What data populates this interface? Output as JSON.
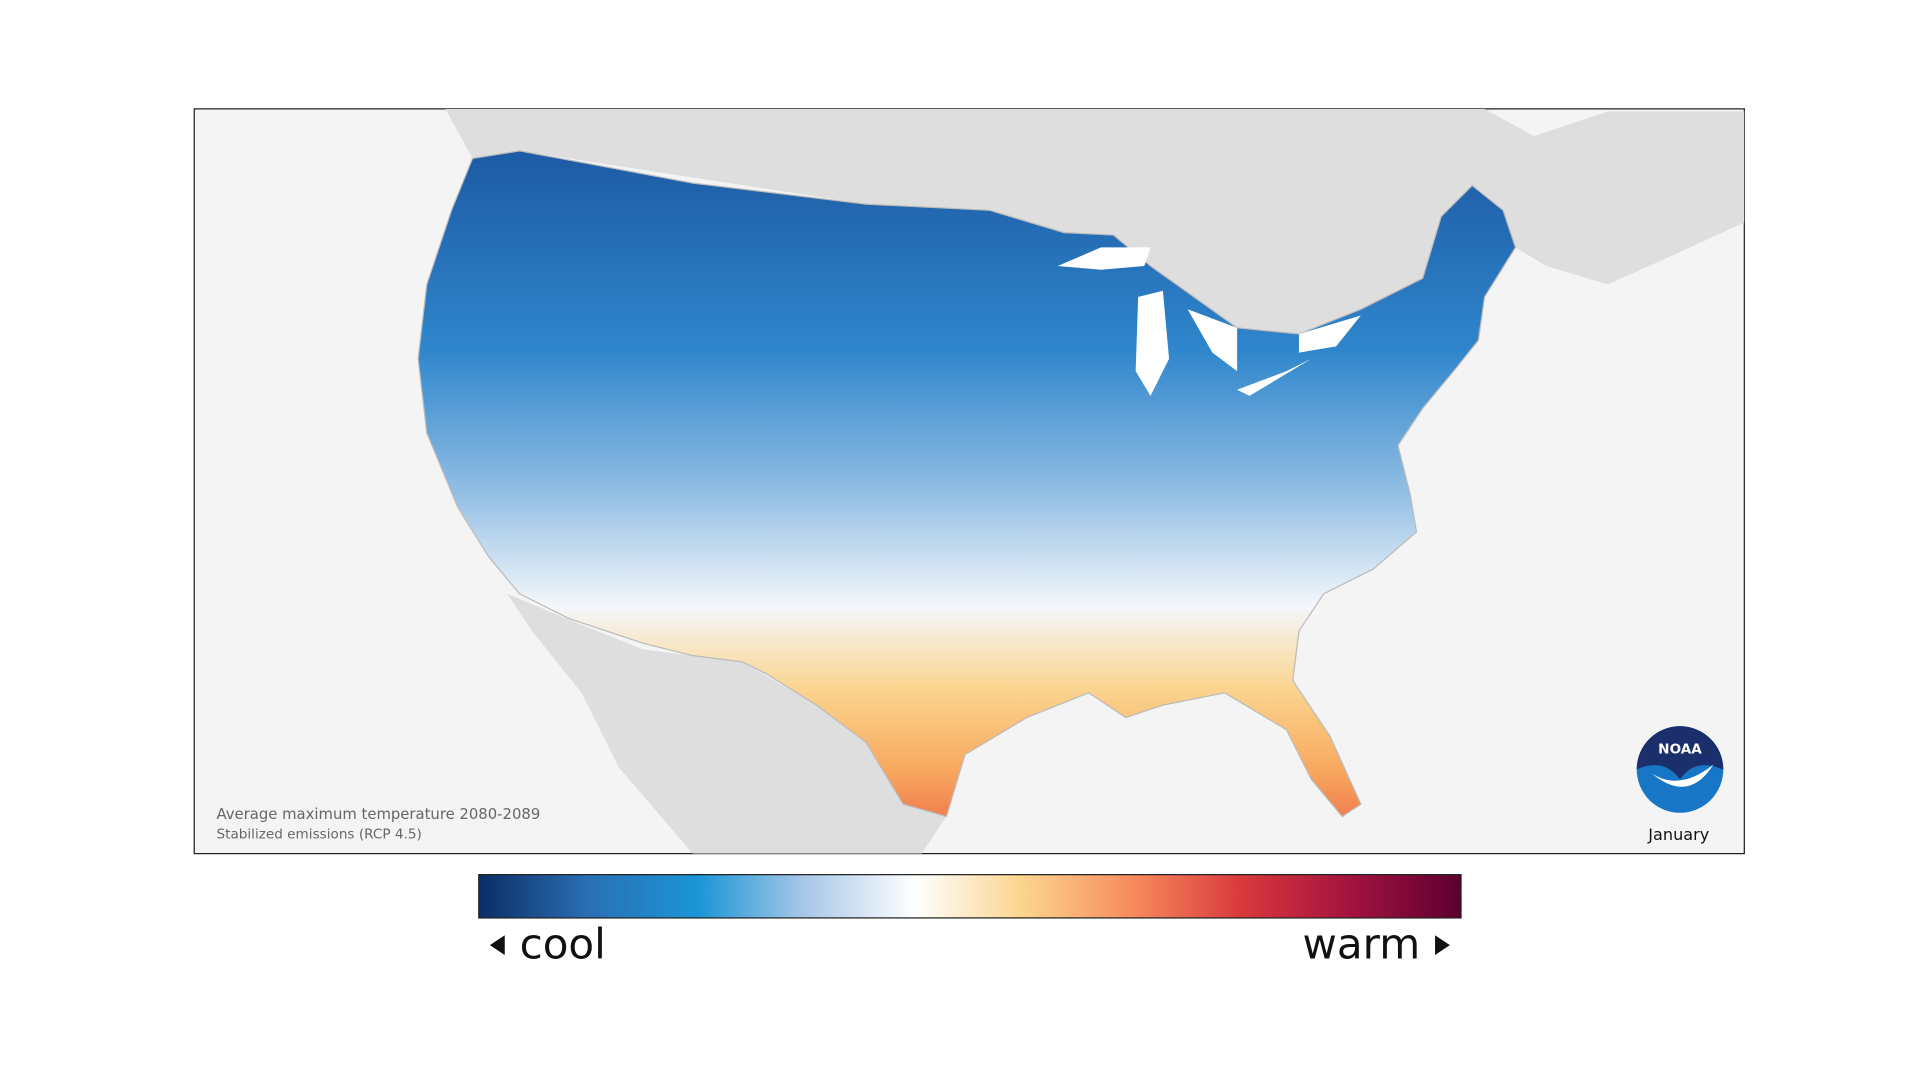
{
  "map": {
    "caption": [
      "Average maximum temperature 2080-2089",
      "Stabilized emissions (RCP 4.5)"
    ],
    "month": "January"
  },
  "logo": {
    "text": "NOAA"
  },
  "legend": {
    "low": "cool",
    "high": "warm",
    "colors": [
      "#0b2d66",
      "#2a6fb4",
      "#1a95d6",
      "#a9c8e8",
      "#ffffff",
      "#fbd38c",
      "#f68a5c",
      "#d9383c",
      "#a3123f",
      "#5c0030"
    ]
  }
}
